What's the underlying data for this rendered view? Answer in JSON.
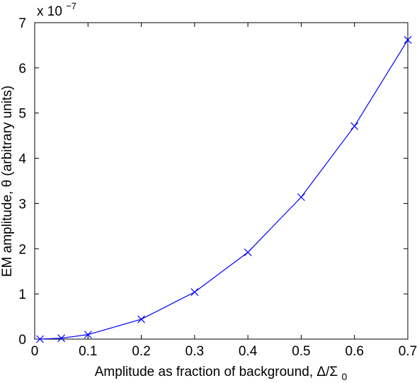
{
  "chart_data": {
    "type": "line",
    "title": "",
    "xlabel": "Amplitude as fraction of background, Δ/Σ",
    "xlabel_subscript": "0",
    "ylabel": "EM amplitude, θ (arbitrary units)",
    "y_multiplier_base": "x 10",
    "y_multiplier_exponent": "−7",
    "xlim": [
      0,
      0.7
    ],
    "ylim": [
      0,
      7
    ],
    "x_ticks": [
      0,
      0.1,
      0.2,
      0.3,
      0.4,
      0.5,
      0.6,
      0.7
    ],
    "x_tick_labels": [
      "0",
      "0.1",
      "0.2",
      "0.3",
      "0.4",
      "0.5",
      "0.6",
      "0.7"
    ],
    "y_ticks": [
      0,
      1,
      2,
      3,
      4,
      5,
      6,
      7
    ],
    "y_tick_labels": [
      "0",
      "1",
      "2",
      "3",
      "4",
      "5",
      "6",
      "7"
    ],
    "grid": false,
    "series": [
      {
        "color": "#0000ff",
        "marker": "x",
        "x": [
          0.01,
          0.05,
          0.1,
          0.2,
          0.3,
          0.4,
          0.5,
          0.6,
          0.7
        ],
        "y": [
          0.0,
          0.02,
          0.1,
          0.44,
          1.04,
          1.92,
          3.14,
          4.71,
          6.62
        ]
      }
    ]
  }
}
